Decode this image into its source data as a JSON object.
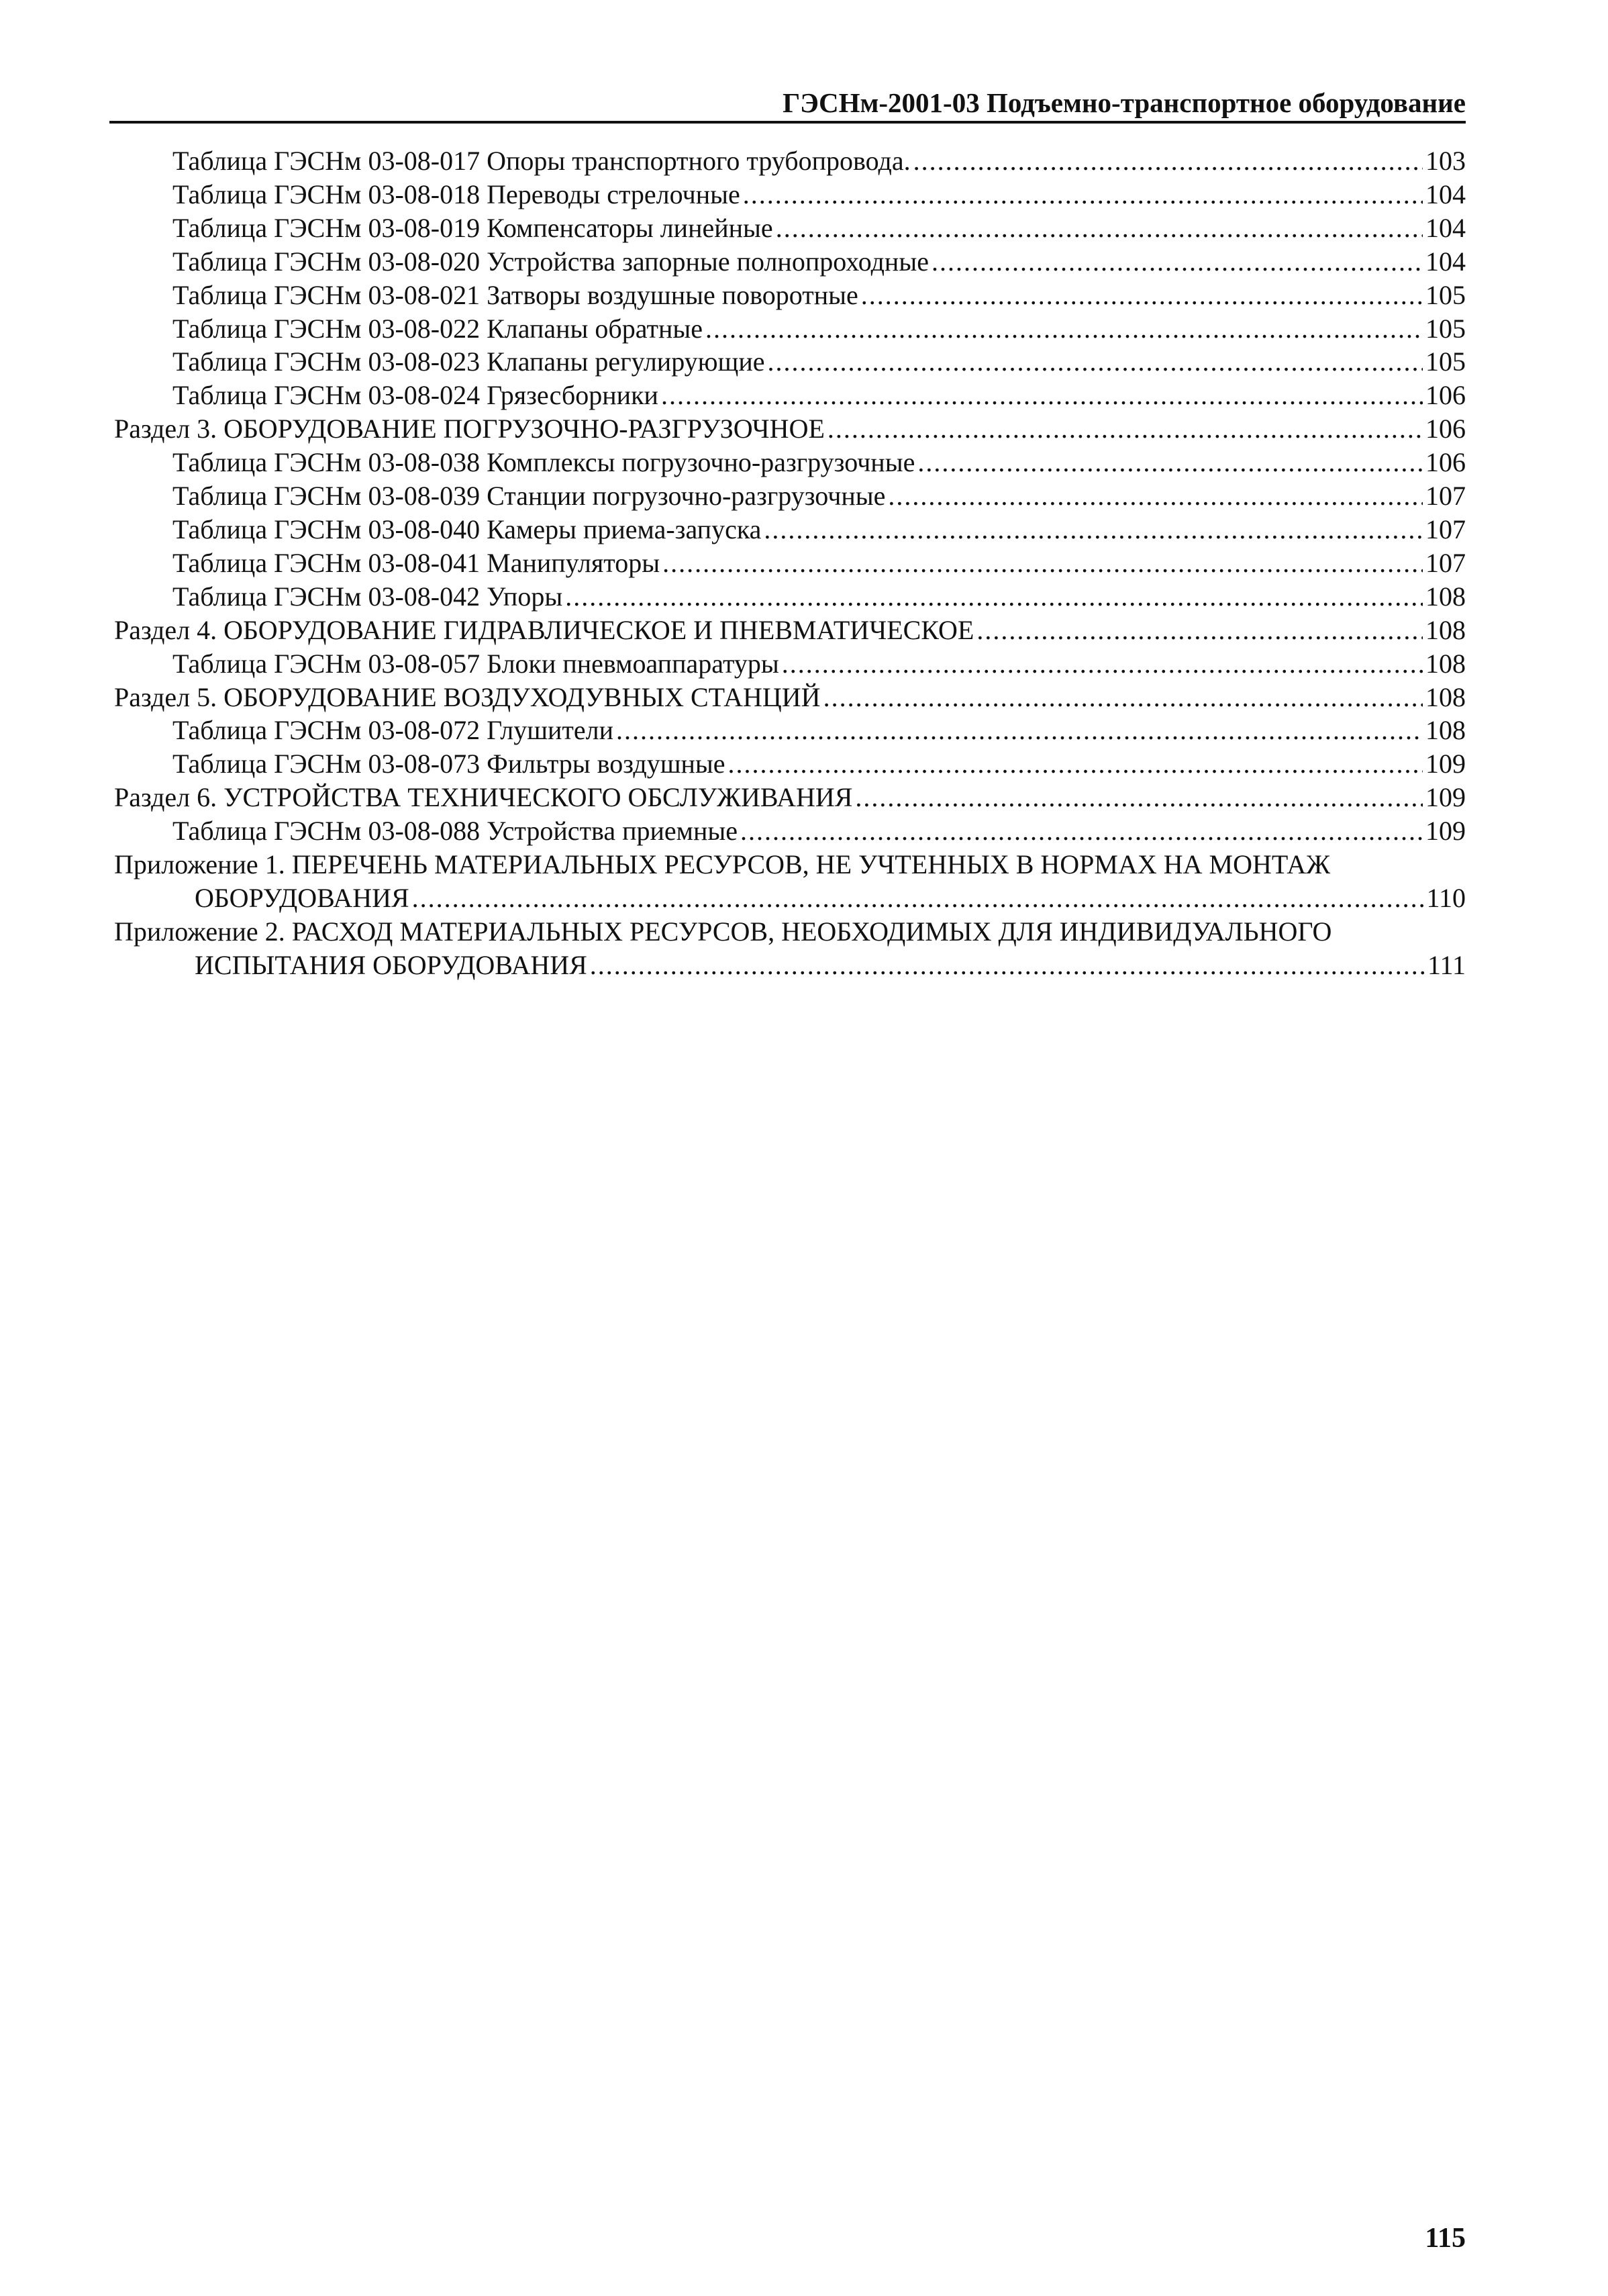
{
  "header": {
    "title": "ГЭСНм-2001-03 Подъемно-транспортное оборудование"
  },
  "toc": [
    {
      "level": 2,
      "label": "Таблица ГЭСНм 03-08-017 Опоры транспортного трубопровода.",
      "page": "103"
    },
    {
      "level": 2,
      "label": "Таблица ГЭСНм 03-08-018 Переводы стрелочные",
      "page": "104"
    },
    {
      "level": 2,
      "label": "Таблица ГЭСНм 03-08-019 Компенсаторы линейные",
      "page": "104"
    },
    {
      "level": 2,
      "label": "Таблица ГЭСНм 03-08-020 Устройства запорные полнопроходные",
      "page": "104"
    },
    {
      "level": 2,
      "label": "Таблица ГЭСНм 03-08-021 Затворы воздушные поворотные",
      "page": "105"
    },
    {
      "level": 2,
      "label": "Таблица ГЭСНм 03-08-022 Клапаны обратные",
      "page": "105"
    },
    {
      "level": 2,
      "label": "Таблица ГЭСНм 03-08-023 Клапаны регулирующие",
      "page": "105"
    },
    {
      "level": 2,
      "label": "Таблица ГЭСНм 03-08-024 Грязесборники",
      "page": "106"
    },
    {
      "level": 1,
      "label": "Раздел 3. ОБОРУДОВАНИЕ ПОГРУЗОЧНО-РАЗГРУЗОЧНОЕ",
      "page": "106"
    },
    {
      "level": 2,
      "label": "Таблица ГЭСНм 03-08-038 Комплексы погрузочно-разгрузочные",
      "page": "106"
    },
    {
      "level": 2,
      "label": "Таблица ГЭСНм 03-08-039 Станции погрузочно-разгрузочные",
      "page": "107"
    },
    {
      "level": 2,
      "label": "Таблица ГЭСНм 03-08-040 Камеры приема-запуска",
      "page": "107"
    },
    {
      "level": 2,
      "label": "Таблица ГЭСНм 03-08-041 Манипуляторы",
      "page": "107"
    },
    {
      "level": 2,
      "label": "Таблица ГЭСНм 03-08-042 Упоры",
      "page": "108"
    },
    {
      "level": 1,
      "label": "Раздел 4. ОБОРУДОВАНИЕ ГИДРАВЛИЧЕСКОЕ И ПНЕВМАТИЧЕСКОЕ",
      "page": "108"
    },
    {
      "level": 2,
      "label": "Таблица ГЭСНм 03-08-057 Блоки пневмоаппаратуры",
      "page": "108"
    },
    {
      "level": 1,
      "label": "Раздел 5. ОБОРУДОВАНИЕ ВОЗДУХОДУВНЫХ СТАНЦИЙ",
      "page": "108"
    },
    {
      "level": 2,
      "label": "Таблица ГЭСНм 03-08-072 Глушители",
      "page": "108"
    },
    {
      "level": 2,
      "label": "Таблица ГЭСНм 03-08-073 Фильтры воздушные",
      "page": "109"
    },
    {
      "level": 1,
      "label": "Раздел 6. УСТРОЙСТВА ТЕХНИЧЕСКОГО ОБСЛУЖИВАНИЯ",
      "page": "109"
    },
    {
      "level": 2,
      "label": "Таблица ГЭСНм 03-08-088 Устройства приемные",
      "page": "109"
    },
    {
      "level": 1,
      "label": "Приложение 1. ПЕРЕЧЕНЬ МАТЕРИАЛЬНЫХ РЕСУРСОВ, НЕ УЧТЕННЫХ В НОРМАХ НА МОНТАЖ",
      "continuation": "ОБОРУДОВАНИЯ",
      "page": "110"
    },
    {
      "level": 1,
      "label": "Приложение 2. РАСХОД МАТЕРИАЛЬНЫХ РЕСУРСОВ, НЕОБХОДИМЫХ ДЛЯ ИНДИВИДУАЛЬНОГО",
      "continuation": "ИСПЫТАНИЯ ОБОРУДОВАНИЯ",
      "page": "111"
    }
  ],
  "footer": {
    "page_number": "115"
  }
}
